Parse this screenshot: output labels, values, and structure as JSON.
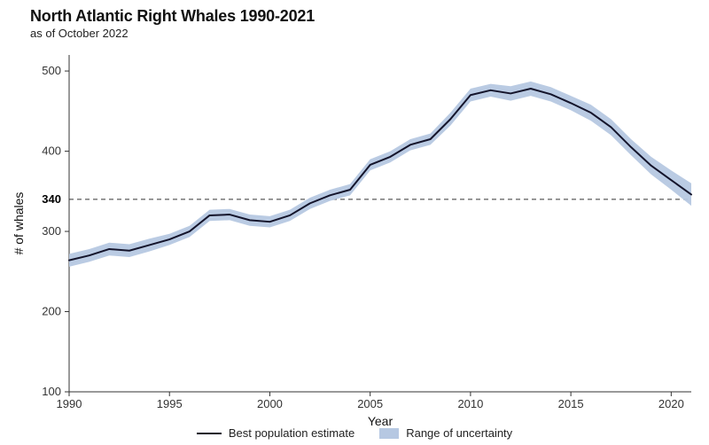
{
  "title": "North Atlantic Right Whales 1990-2021",
  "subtitle": "as of October 2022",
  "chart": {
    "type": "line",
    "xlabel": "Year",
    "ylabel": "# of whales",
    "xlim": [
      1990,
      2021
    ],
    "ylim": [
      100,
      520
    ],
    "xticks": [
      1990,
      1995,
      2000,
      2005,
      2010,
      2015,
      2020
    ],
    "yticks": [
      100,
      200,
      300,
      340,
      400,
      500
    ],
    "ytick_major": [
      100,
      200,
      300,
      400,
      500
    ],
    "reference_line": {
      "y": 340,
      "label": "340",
      "dash": [
        5,
        4
      ],
      "color": "#333333",
      "width": 1
    },
    "series": {
      "years": [
        1990,
        1991,
        1992,
        1993,
        1994,
        1995,
        1996,
        1997,
        1998,
        1999,
        2000,
        2001,
        2002,
        2003,
        2004,
        2005,
        2006,
        2007,
        2008,
        2009,
        2010,
        2011,
        2012,
        2013,
        2014,
        2015,
        2016,
        2017,
        2018,
        2019,
        2020,
        2021
      ],
      "best": [
        264,
        270,
        278,
        276,
        283,
        290,
        300,
        320,
        321,
        314,
        312,
        320,
        335,
        345,
        352,
        383,
        393,
        408,
        415,
        440,
        470,
        476,
        472,
        478,
        471,
        460,
        448,
        430,
        405,
        382,
        364,
        346
      ],
      "low": [
        256,
        262,
        270,
        268,
        275,
        283,
        293,
        313,
        314,
        307,
        305,
        313,
        328,
        338,
        345,
        376,
        386,
        401,
        408,
        432,
        462,
        468,
        463,
        469,
        462,
        451,
        438,
        420,
        395,
        371,
        352,
        332
      ],
      "high": [
        272,
        278,
        286,
        284,
        291,
        297,
        307,
        327,
        328,
        321,
        319,
        327,
        342,
        352,
        359,
        390,
        400,
        415,
        422,
        448,
        478,
        484,
        481,
        487,
        480,
        469,
        458,
        440,
        415,
        393,
        376,
        360
      ]
    },
    "colors": {
      "line": "#14142b",
      "uncertainty": "#b6c8e2",
      "axis": "#333333",
      "tick_text": "#333333",
      "background": "#ffffff"
    },
    "line_width": 2,
    "tick_fontsize": 13,
    "axis_label_fontsize": 14,
    "title_fontsize": 18,
    "subtitle_fontsize": 13
  },
  "legend": {
    "items": [
      {
        "kind": "line",
        "label": "Best population estimate"
      },
      {
        "kind": "swatch",
        "label": "Range of uncertainty"
      }
    ]
  }
}
